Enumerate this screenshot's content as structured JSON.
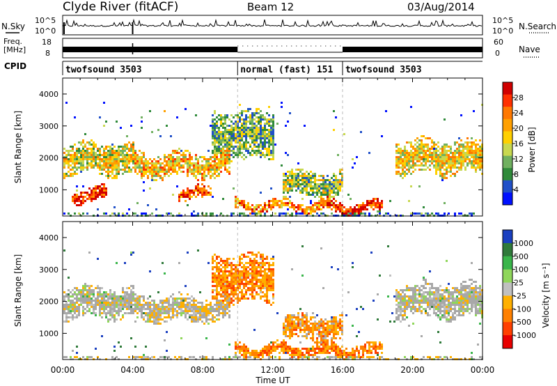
{
  "header": {
    "station": "Clyde River (fitACF)",
    "beam": "Beam 12",
    "date": "03/Aug/2014"
  },
  "top_panel": {
    "nsky_label": "N.Sky",
    "nsearch_label": "N.Search",
    "nsky_ticks": [
      "10^5",
      "10^0"
    ],
    "nsearch_ticks": [
      "10^5",
      "10^0"
    ],
    "freq_label_1": "Freq.",
    "freq_label_2": "[MHz]",
    "freq_ticks": [
      "18",
      "8"
    ],
    "nave_label": "Nave",
    "nave_ticks": [
      "60",
      "0"
    ],
    "cpid_label": "CPID",
    "cpid_segments": [
      {
        "label": "twofsound 3503",
        "start_hour": 0,
        "end_hour": 10
      },
      {
        "label": "normal (fast) 151",
        "start_hour": 10,
        "end_hour": 16
      },
      {
        "label": "twofsound 3503",
        "start_hour": 16,
        "end_hour": 24
      }
    ]
  },
  "power_colorbar": {
    "label": "Power [dB]",
    "ticks": [
      "28",
      "24",
      "20",
      "16",
      "12",
      "8",
      "4"
    ],
    "colors": [
      "#d00000",
      "#ff3000",
      "#ff7800",
      "#ffa000",
      "#ffd000",
      "#c8d850",
      "#70b060",
      "#2f8a3a",
      "#2050c8",
      "#0010ff"
    ]
  },
  "velocity_colorbar": {
    "label": "Velocity [m s⁻¹]",
    "ticks": [
      "1000",
      "500",
      "100",
      "25",
      "-25",
      "-100",
      "-500",
      "-1000"
    ],
    "colors": [
      "#1a3fc0",
      "#2f7a3a",
      "#39b54a",
      "#8fd65a",
      "#c0c0c0",
      "#ffb000",
      "#ff8000",
      "#ff4000",
      "#e80000"
    ]
  },
  "colors": {
    "ground_scatter": "#a8a8a8"
  },
  "chart_data": [
    {
      "type": "heatmap",
      "name": "power",
      "ylabel": "Slant Range [km]",
      "xlabel": "",
      "x_ticks": [
        "00:00",
        "04:00",
        "08:00",
        "12:00",
        "16:00",
        "20:00",
        "00:00"
      ],
      "y_ticks": [
        "4000",
        "3000",
        "2000",
        "1000"
      ],
      "xlim_hours": [
        0,
        24
      ],
      "ylim_km": [
        180,
        4500
      ],
      "scatter_bands": [
        {
          "t0": 0.0,
          "t1": 4.0,
          "r0": 1500,
          "r1": 2500,
          "level": 0.5
        },
        {
          "t0": 0.5,
          "t1": 2.5,
          "r0": 650,
          "r1": 1100,
          "level": 0.85
        },
        {
          "t0": 4.0,
          "t1": 9.5,
          "r0": 1400,
          "r1": 2200,
          "level": 0.6
        },
        {
          "t0": 6.5,
          "t1": 8.5,
          "r0": 700,
          "r1": 1100,
          "level": 0.8
        },
        {
          "t0": 9.8,
          "t1": 15.5,
          "r0": 350,
          "r1": 700,
          "level": 0.7
        },
        {
          "t0": 15.0,
          "t1": 18.3,
          "r0": 300,
          "r1": 650,
          "level": 0.9
        },
        {
          "t0": 12.5,
          "t1": 16.0,
          "r0": 800,
          "r1": 1600,
          "level": 0.4
        },
        {
          "t0": 19.0,
          "t1": 24.0,
          "r0": 1500,
          "r1": 2600,
          "level": 0.55
        },
        {
          "t0": 8.5,
          "t1": 12.0,
          "r0": 2000,
          "r1": 3500,
          "level": 0.35
        }
      ]
    },
    {
      "type": "heatmap",
      "name": "velocity",
      "ylabel": "Slant Range [km]",
      "xlabel": "Time UT",
      "x_ticks": [
        "00:00",
        "04:00",
        "08:00",
        "12:00",
        "16:00",
        "20:00",
        "00:00"
      ],
      "y_ticks": [
        "4000",
        "3000",
        "2000",
        "1000"
      ],
      "xlim_hours": [
        0,
        24
      ],
      "ylim_km": [
        180,
        4500
      ],
      "scatter_bands": [
        {
          "t0": 0.0,
          "t1": 4.0,
          "r0": 1500,
          "r1": 2500,
          "level": 0.45
        },
        {
          "t0": 4.0,
          "t1": 9.5,
          "r0": 1400,
          "r1": 2200,
          "level": 0.5
        },
        {
          "t0": 9.8,
          "t1": 18.3,
          "r0": 300,
          "r1": 700,
          "level": 0.72
        },
        {
          "t0": 12.5,
          "t1": 16.0,
          "r0": 800,
          "r1": 1600,
          "level": 0.65
        },
        {
          "t0": 19.0,
          "t1": 24.0,
          "r0": 1500,
          "r1": 2600,
          "level": 0.45
        },
        {
          "t0": 8.5,
          "t1": 12.0,
          "r0": 2000,
          "r1": 3500,
          "level": 0.7
        }
      ]
    }
  ]
}
